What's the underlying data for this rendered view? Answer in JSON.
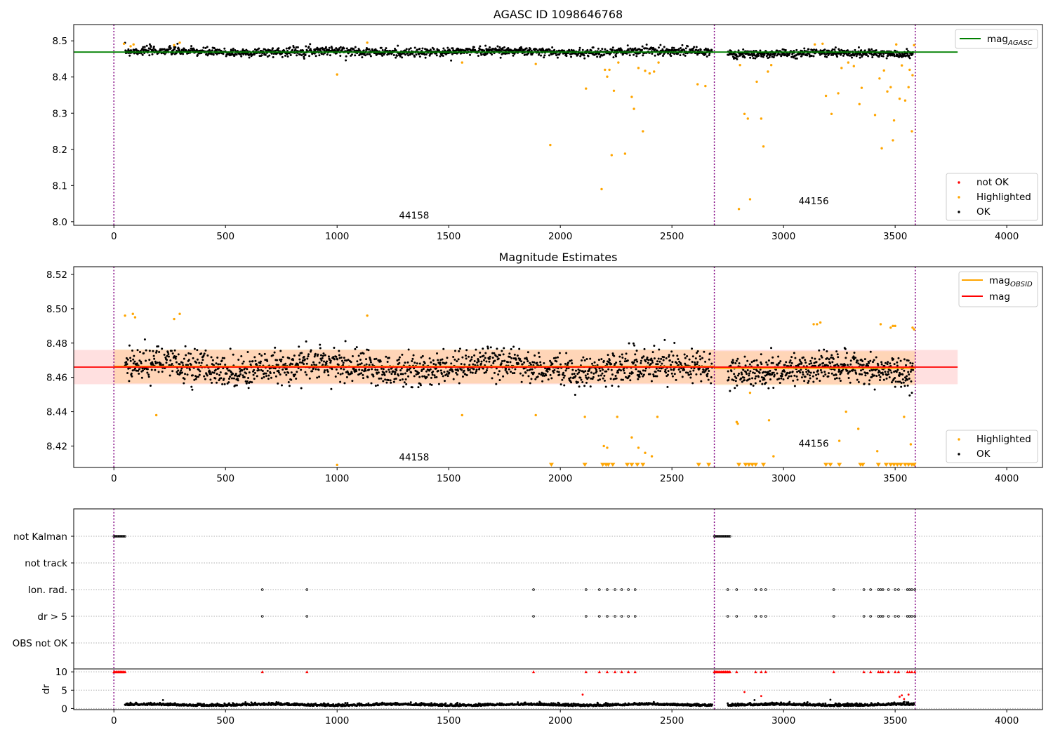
{
  "chart_data": [
    {
      "type": "scatter",
      "title": "AGASC ID 1098646768",
      "xlim": [
        -180,
        4160
      ],
      "ylim": [
        7.99,
        8.545
      ],
      "x_ticks": [
        0,
        500,
        1000,
        1500,
        2000,
        2500,
        3000,
        3500,
        4000
      ],
      "y_ticks": [
        8.0,
        8.1,
        8.2,
        8.3,
        8.4,
        8.5
      ],
      "y_tick_labels": [
        "8.0",
        "8.1",
        "8.2",
        "8.3",
        "8.4",
        "8.5"
      ],
      "grid": false,
      "vlines": [
        0,
        2690,
        3590
      ],
      "reference_line": {
        "name": "mag",
        "subscript": "AGASC",
        "y": 8.469,
        "x_range": [
          -180,
          3780
        ],
        "color": "#008000"
      },
      "obsid_annotations": [
        {
          "label": "44158",
          "x": 1345,
          "y": 8.008
        },
        {
          "label": "44156",
          "x": 3135,
          "y": 8.048
        }
      ],
      "segments": [
        {
          "x_range": [
            50,
            2680
          ],
          "center": 8.47,
          "spread": 0.011,
          "count": 1400
        },
        {
          "x_range": [
            2750,
            3580
          ],
          "center": 8.465,
          "spread": 0.01,
          "count": 480
        }
      ],
      "highlighted_points": [
        [
          45,
          8.492
        ],
        [
          75,
          8.485
        ],
        [
          88,
          8.49
        ],
        [
          270,
          8.488
        ],
        [
          295,
          8.495
        ],
        [
          1000,
          8.407
        ],
        [
          1135,
          8.495
        ],
        [
          1560,
          8.44
        ],
        [
          1890,
          8.436
        ],
        [
          1955,
          8.212
        ],
        [
          2115,
          8.368
        ],
        [
          2185,
          8.09
        ],
        [
          2200,
          8.42
        ],
        [
          2210,
          8.401
        ],
        [
          2220,
          8.42
        ],
        [
          2230,
          8.184
        ],
        [
          2240,
          8.362
        ],
        [
          2260,
          8.44
        ],
        [
          2290,
          8.188
        ],
        [
          2320,
          8.345
        ],
        [
          2330,
          8.312
        ],
        [
          2350,
          8.425
        ],
        [
          2370,
          8.25
        ],
        [
          2380,
          8.417
        ],
        [
          2400,
          8.41
        ],
        [
          2420,
          8.415
        ],
        [
          2440,
          8.44
        ],
        [
          2615,
          8.38
        ],
        [
          2650,
          8.375
        ],
        [
          2800,
          8.035
        ],
        [
          2805,
          8.433
        ],
        [
          2825,
          8.298
        ],
        [
          2840,
          8.285
        ],
        [
          2850,
          8.062
        ],
        [
          2880,
          8.387
        ],
        [
          2900,
          8.285
        ],
        [
          2910,
          8.208
        ],
        [
          2930,
          8.415
        ],
        [
          2945,
          8.433
        ],
        [
          3140,
          8.49
        ],
        [
          3175,
          8.492
        ],
        [
          3190,
          8.348
        ],
        [
          3215,
          8.298
        ],
        [
          3245,
          8.355
        ],
        [
          3260,
          8.425
        ],
        [
          3290,
          8.44
        ],
        [
          3315,
          8.43
        ],
        [
          3340,
          8.325
        ],
        [
          3350,
          8.37
        ],
        [
          3410,
          8.295
        ],
        [
          3430,
          8.396
        ],
        [
          3440,
          8.203
        ],
        [
          3450,
          8.418
        ],
        [
          3465,
          8.36
        ],
        [
          3480,
          8.372
        ],
        [
          3490,
          8.225
        ],
        [
          3495,
          8.28
        ],
        [
          3505,
          8.49
        ],
        [
          3520,
          8.34
        ],
        [
          3530,
          8.432
        ],
        [
          3545,
          8.335
        ],
        [
          3560,
          8.372
        ],
        [
          3565,
          8.42
        ],
        [
          3575,
          8.25
        ],
        [
          3578,
          8.405
        ],
        [
          3585,
          8.488
        ]
      ],
      "not_ok_points": [],
      "legend_lines": [
        {
          "name": "mag",
          "subscript": "AGASC",
          "color": "#008000"
        }
      ],
      "legend_markers": [
        {
          "name": "not OK",
          "color": "#ff0000"
        },
        {
          "name": "Highlighted",
          "color": "#ffa500"
        },
        {
          "name": "OK",
          "color": "#000000"
        }
      ]
    },
    {
      "type": "scatter",
      "title": "Magnitude Estimates",
      "xlim": [
        -180,
        4160
      ],
      "ylim": [
        8.4075,
        8.5245
      ],
      "x_ticks": [
        0,
        500,
        1000,
        1500,
        2000,
        2500,
        3000,
        3500,
        4000
      ],
      "y_ticks": [
        8.42,
        8.44,
        8.46,
        8.48,
        8.5,
        8.52
      ],
      "y_tick_labels": [
        "8.42",
        "8.44",
        "8.46",
        "8.48",
        "8.50",
        "8.52"
      ],
      "grid": false,
      "vlines": [
        0,
        2690,
        3590
      ],
      "mag_line": {
        "name": "mag",
        "y": 8.466,
        "band": [
          8.456,
          8.476
        ],
        "x_range": [
          -180,
          3780
        ],
        "color": "#ff0000"
      },
      "obsid_lines": [
        {
          "name": "mag",
          "subscript": "OBSID",
          "x_range": [
            0,
            2690
          ],
          "y": 8.4664,
          "band": [
            8.4565,
            8.4763
          ],
          "color": "#ffa500"
        },
        {
          "name": "mag",
          "subscript": "OBSID",
          "x_range": [
            2690,
            3590
          ],
          "y": 8.4654,
          "band": [
            8.4555,
            8.4753
          ],
          "color": "#ffa500"
        }
      ],
      "obsid_annotations": [
        {
          "label": "44158",
          "x": 1345,
          "y": 8.4115
        },
        {
          "label": "44156",
          "x": 3135,
          "y": 8.4195
        }
      ],
      "segments": [
        {
          "x_range": [
            50,
            2680
          ],
          "center": 8.466,
          "spread": 0.0085,
          "count": 1450
        },
        {
          "x_range": [
            2750,
            3580
          ],
          "center": 8.4645,
          "spread": 0.0075,
          "count": 500
        }
      ],
      "highlighted_points": [
        [
          50,
          8.496
        ],
        [
          85,
          8.497
        ],
        [
          95,
          8.495
        ],
        [
          190,
          8.438
        ],
        [
          270,
          8.494
        ],
        [
          295,
          8.497
        ],
        [
          1000,
          8.409
        ],
        [
          1135,
          8.496
        ],
        [
          1560,
          8.438
        ],
        [
          1890,
          8.438
        ],
        [
          2110,
          8.437
        ],
        [
          2195,
          8.42
        ],
        [
          2210,
          8.419
        ],
        [
          2255,
          8.437
        ],
        [
          2320,
          8.425
        ],
        [
          2350,
          8.419
        ],
        [
          2380,
          8.416
        ],
        [
          2410,
          8.414
        ],
        [
          2435,
          8.437
        ],
        [
          2790,
          8.434
        ],
        [
          2795,
          8.433
        ],
        [
          2850,
          8.451
        ],
        [
          2935,
          8.435
        ],
        [
          2955,
          8.414
        ],
        [
          3135,
          8.491
        ],
        [
          3150,
          8.491
        ],
        [
          3165,
          8.492
        ],
        [
          3250,
          8.423
        ],
        [
          3280,
          8.44
        ],
        [
          3335,
          8.43
        ],
        [
          3420,
          8.417
        ],
        [
          3435,
          8.491
        ],
        [
          3480,
          8.489
        ],
        [
          3490,
          8.49
        ],
        [
          3500,
          8.49
        ],
        [
          3540,
          8.437
        ],
        [
          3570,
          8.421
        ],
        [
          3578,
          8.489
        ],
        [
          3585,
          8.488
        ]
      ],
      "below_range_x": [
        1960,
        2110,
        2190,
        2205,
        2215,
        2235,
        2300,
        2320,
        2345,
        2370,
        2620,
        2665,
        2800,
        2830,
        2845,
        2860,
        2875,
        2910,
        3190,
        3210,
        3250,
        3345,
        3355,
        3425,
        3460,
        3480,
        3495,
        3510,
        3525,
        3545,
        3560,
        3575,
        3585
      ],
      "legend_lines": [
        {
          "name": "mag",
          "subscript": "OBSID",
          "color": "#ffa500"
        },
        {
          "name": "mag",
          "subscript": "",
          "color": "#ff0000"
        }
      ],
      "legend_markers": [
        {
          "name": "Highlighted",
          "color": "#ffa500"
        },
        {
          "name": "OK",
          "color": "#000000"
        }
      ]
    },
    {
      "type": "scatter",
      "title": "",
      "xlim": [
        -180,
        4160
      ],
      "x_ticks": [
        0,
        500,
        1000,
        1500,
        2000,
        2500,
        3000,
        3500,
        4000
      ],
      "vlines": [
        0,
        2690,
        3590
      ],
      "flag_rows": [
        "not Kalman",
        "not track",
        "Ion. rad.",
        "dr > 5",
        "OBS not OK"
      ],
      "flags": {
        "not Kalman": {
          "x_ranges": [
            [
              0,
              50
            ],
            [
              2690,
              2760
            ]
          ]
        },
        "not track": {
          "x_ranges": []
        },
        "Ion. rad.": {
          "x": [
            665,
            865,
            1880,
            2115,
            2175,
            2210,
            2245,
            2275,
            2305,
            2335,
            2750,
            2790,
            2875,
            2900,
            2920,
            3225,
            3360,
            3390,
            3425,
            3435,
            3445,
            3470,
            3500,
            3515,
            3555,
            3565,
            3575,
            3588
          ]
        },
        "dr > 5": {
          "x": [
            665,
            865,
            1880,
            2115,
            2175,
            2210,
            2245,
            2275,
            2305,
            2335,
            2750,
            2790,
            2875,
            2900,
            2920,
            3225,
            3360,
            3390,
            3425,
            3435,
            3445,
            3470,
            3500,
            3515,
            3555,
            3565,
            3575,
            3588
          ]
        },
        "OBS not OK": {
          "x": []
        }
      },
      "dr": {
        "ylabel": "dr",
        "ylim": [
          -0.3,
          10.8
        ],
        "y_ticks": [
          0,
          5,
          10
        ],
        "y_tick_labels": [
          "0",
          "5",
          "10"
        ],
        "clip_value": 10,
        "base": 0.8,
        "spread": 0.5,
        "segments": [
          [
            50,
            2680,
            1400
          ],
          [
            2750,
            3585,
            480
          ]
        ],
        "outliers": [
          [
            220,
            2.3
          ],
          [
            2100,
            3.8
          ],
          [
            2825,
            4.5
          ],
          [
            2900,
            3.4
          ],
          [
            2870,
            2.3
          ],
          [
            3210,
            2.4
          ],
          [
            3540,
            2.6
          ],
          [
            3530,
            3.6
          ],
          [
            3560,
            3.8
          ],
          [
            3520,
            3.2
          ]
        ],
        "clipped_x_ranges": [
          [
            0,
            50
          ],
          [
            2690,
            2760
          ]
        ],
        "clipped_x": [
          665,
          865,
          1880,
          2115,
          2175,
          2210,
          2245,
          2275,
          2305,
          2335,
          2790,
          2875,
          2900,
          2920,
          3225,
          3360,
          3390,
          3425,
          3435,
          3445,
          3470,
          3500,
          3515,
          3555,
          3565,
          3575,
          3588
        ]
      }
    }
  ]
}
